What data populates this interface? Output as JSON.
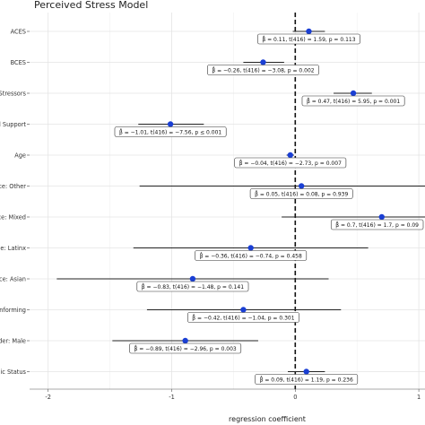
{
  "chart_data": {
    "type": "forest",
    "title": "Perceived Stress Model",
    "xlabel": "regression coefficient",
    "xlim": [
      -2.15,
      1.05
    ],
    "xticks": [
      -2,
      -1,
      0,
      1
    ],
    "reference_line_x": 0,
    "grid": true,
    "point_color": "#1a3fd4",
    "terms": [
      {
        "label": "ACES",
        "estimate": 0.11,
        "ci_low": -0.02,
        "ci_high": 0.24,
        "annotation": "β̂ = 0.11, t(416) = 1.59, p = 0.113"
      },
      {
        "label": "BCES",
        "estimate": -0.26,
        "ci_low": -0.42,
        "ci_high": -0.09,
        "annotation": "β̂ = −0.26, t(416) = −3.08, p = 0.002"
      },
      {
        "label": "D Stressors",
        "estimate": 0.47,
        "ci_low": 0.31,
        "ci_high": 0.62,
        "annotation": "β̂ = 0.47, t(416) = 5.95, p = 0.001"
      },
      {
        "label": "cial Support",
        "estimate": -1.01,
        "ci_low": -1.27,
        "ci_high": -0.74,
        "annotation": "β̂ = −1.01, t(416) = −7.56, p ≤ 0.001"
      },
      {
        "label": "Age",
        "estimate": -0.04,
        "ci_low": -0.07,
        "ci_high": -0.01,
        "annotation": "β̂ = −0.04, t(416) = −2.73, p = 0.007"
      },
      {
        "label": "Race: Other",
        "estimate": 0.05,
        "ci_low": -1.26,
        "ci_high": 1.35,
        "annotation": "β̂ = 0.05, t(416) = 0.08, p = 0.939"
      },
      {
        "label": "Race: Mixed",
        "estimate": 0.7,
        "ci_low": -0.11,
        "ci_high": 1.51,
        "annotation": "β̂ = 0.7, t(416) = 1.7, p = 0.09"
      },
      {
        "label": "Race: Latinx",
        "estimate": -0.36,
        "ci_low": -1.31,
        "ci_high": 0.59,
        "annotation": "β̂ = −0.36, t(416) = −0.74, p = 0.458"
      },
      {
        "label": "Race: Asian",
        "estimate": -0.83,
        "ci_low": -1.93,
        "ci_high": 0.27,
        "annotation": "β̂ = −0.83, t(416) = −1.48, p = 0.141"
      },
      {
        "label": "Conforming",
        "estimate": -0.42,
        "ci_low": -1.2,
        "ci_high": 0.37,
        "annotation": "β̂ = −0.42, t(416) = −1.04, p = 0.301"
      },
      {
        "label": "ender: Male",
        "estimate": -0.89,
        "ci_low": -1.48,
        "ci_high": -0.3,
        "annotation": "β̂ = −0.89, t(416) = −2.96, p = 0.003"
      },
      {
        "label": "omic Status",
        "estimate": 0.09,
        "ci_low": -0.06,
        "ci_high": 0.24,
        "annotation": "β̂ = 0.09, t(416) = 1.19, p = 0.236"
      }
    ]
  }
}
